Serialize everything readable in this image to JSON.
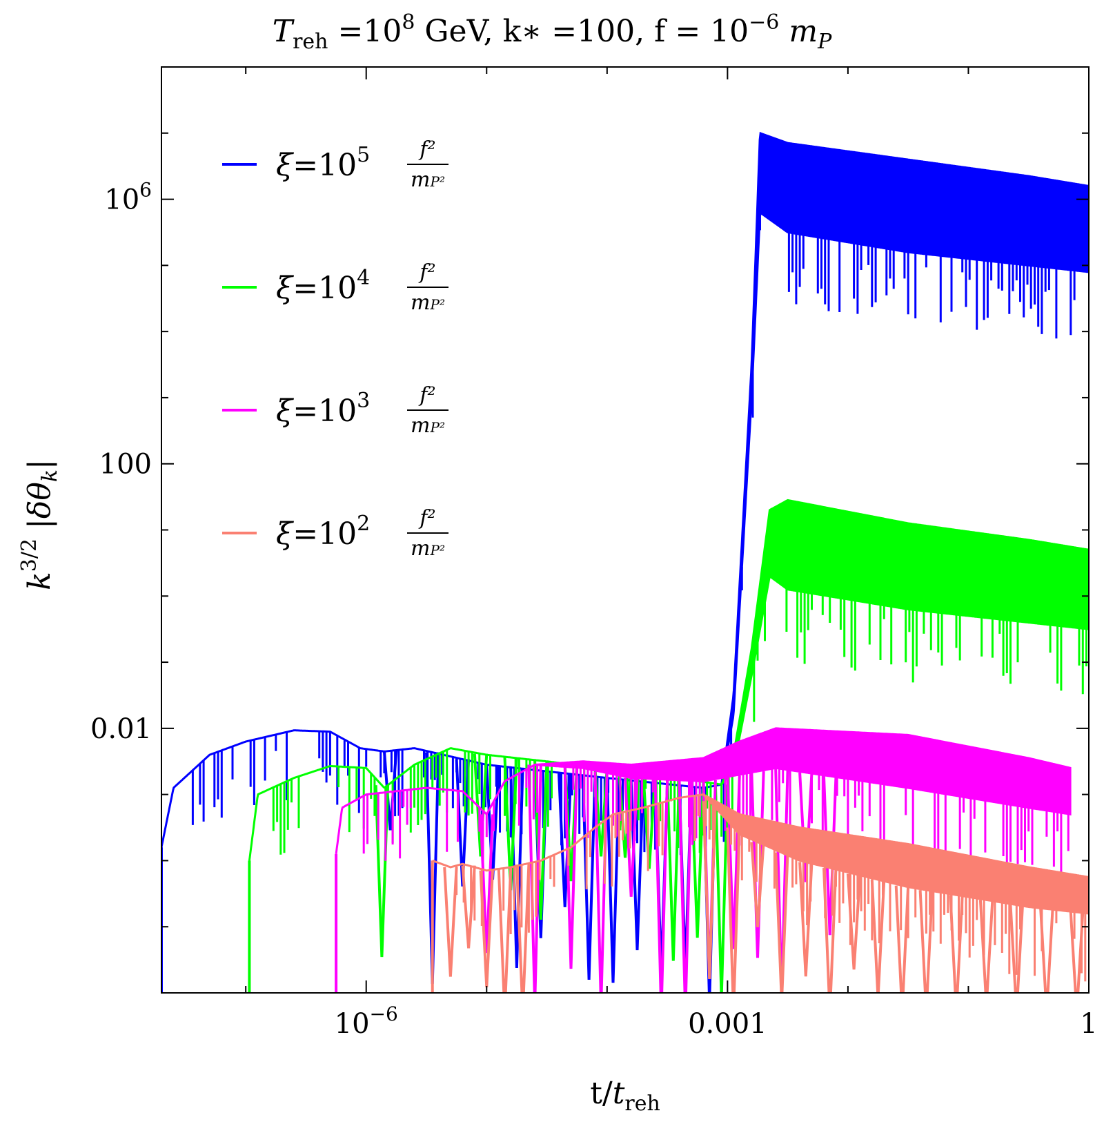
{
  "chart_data": {
    "type": "line",
    "title": "T_reh =10^8 GeV, k* =100, f = 10^-6 m_P",
    "title_parts": {
      "t_sym": "T",
      "t_sub": "reh",
      "eq1": " =10",
      "exp1": "8",
      "rest": " GeV, k",
      "star": "∗",
      "k_val": " =100, f = 10",
      "exp2": "−6",
      "mp": " m",
      "mp_sub": "P"
    },
    "xlabel": "t/t_reh",
    "xlabel_parts": {
      "a": "t/",
      "b": "t",
      "sub": "reh"
    },
    "ylabel": "k^{3/2} |δθ_k|",
    "ylabel_parts": {
      "k": "k",
      "exp": "3/2",
      "mid": " |δθ",
      "sub": "k",
      "end": "|"
    },
    "x_scale": "log",
    "y_scale": "log",
    "x_range_log10": [
      -7.7,
      0
    ],
    "y_range_log10": [
      -6,
      8
    ],
    "x_ticks": [
      {
        "log": -6,
        "label": "10",
        "exp": "−6"
      },
      {
        "log": -3,
        "label": "0.001",
        "exp": ""
      },
      {
        "log": 0,
        "label": "1",
        "exp": ""
      }
    ],
    "y_ticks": [
      {
        "log": 6,
        "label": "10",
        "exp": "6"
      },
      {
        "log": 2,
        "label": "100",
        "exp": ""
      },
      {
        "log": -2,
        "label": "0.01",
        "exp": ""
      }
    ],
    "legend_position": "top-left",
    "series": [
      {
        "name": "ξ=10^5 f²/m_P²",
        "xi_exp": "5",
        "color": "#0000ff",
        "envelope": [
          [
            -7.7,
            -3.8
          ],
          [
            -7.6,
            -2.9
          ],
          [
            -7.3,
            -2.4
          ],
          [
            -7,
            -2.2
          ],
          [
            -6.6,
            -2.03
          ],
          [
            -6.3,
            -2.05
          ],
          [
            -6.05,
            -2.3
          ],
          [
            -5.85,
            -2.35
          ],
          [
            -5.6,
            -2.3
          ],
          [
            -5,
            -2.55
          ],
          [
            -4,
            -2.75
          ],
          [
            -3.2,
            -2.9
          ],
          [
            -3.05,
            -2.85
          ],
          [
            -2.95,
            -1.5
          ],
          [
            -2.8,
            3.5
          ],
          [
            -2.73,
            7.0
          ],
          [
            -2.5,
            6.85
          ],
          [
            -1.5,
            6.6
          ],
          [
            -0.5,
            6.35
          ],
          [
            0,
            6.2
          ]
        ],
        "floor": [
          [
            -7.7,
            -3.8
          ],
          [
            -7.6,
            -2.9
          ],
          [
            -7.3,
            -2.4
          ],
          [
            -7,
            -2.2
          ],
          [
            -6.6,
            -2.03
          ],
          [
            -6.3,
            -2.05
          ],
          [
            -6.05,
            -2.3
          ],
          [
            -5.85,
            -2.35
          ],
          [
            -5.6,
            -2.3
          ],
          [
            -5,
            -2.55
          ],
          [
            -4,
            -2.75
          ],
          [
            -3.2,
            -2.9
          ],
          [
            -3.05,
            -2.85
          ],
          [
            -2.95,
            -1.8
          ],
          [
            -2.8,
            3.0
          ],
          [
            -2.73,
            5.8
          ],
          [
            -2.5,
            5.5
          ],
          [
            -1.5,
            5.2
          ],
          [
            -0.5,
            5.0
          ],
          [
            0,
            4.9
          ]
        ],
        "dips": [
          -5.8,
          -5.45,
          -5.2,
          -4.95,
          -4.75,
          -4.55,
          -4.35,
          -4.15,
          -3.95,
          -3.75,
          -3.55,
          -3.35,
          -3.15
        ]
      },
      {
        "name": "ξ=10^4 f²/m_P²",
        "xi_exp": "4",
        "color": "#00ff00",
        "envelope": [
          [
            -6.97,
            -4.0
          ],
          [
            -6.9,
            -3.0
          ],
          [
            -6.6,
            -2.75
          ],
          [
            -6.3,
            -2.57
          ],
          [
            -6.0,
            -2.6
          ],
          [
            -5.85,
            -2.9
          ],
          [
            -5.6,
            -2.55
          ],
          [
            -5.3,
            -2.3
          ],
          [
            -5.0,
            -2.4
          ],
          [
            -4.5,
            -2.5
          ],
          [
            -3.6,
            -2.7
          ],
          [
            -3.05,
            -2.85
          ],
          [
            -2.95,
            -2.4
          ],
          [
            -2.8,
            -0.8
          ],
          [
            -2.65,
            1.3
          ],
          [
            -2.5,
            1.45
          ],
          [
            -1.5,
            1.1
          ],
          [
            -0.5,
            0.85
          ],
          [
            0,
            0.7
          ]
        ],
        "floor": [
          [
            -6.97,
            -4.0
          ],
          [
            -6.9,
            -3.0
          ],
          [
            -6.6,
            -2.75
          ],
          [
            -6.3,
            -2.57
          ],
          [
            -6.0,
            -2.6
          ],
          [
            -5.85,
            -2.9
          ],
          [
            -5.6,
            -2.55
          ],
          [
            -5.3,
            -2.3
          ],
          [
            -5.0,
            -2.4
          ],
          [
            -4.5,
            -2.5
          ],
          [
            -3.6,
            -2.7
          ],
          [
            -3.05,
            -2.85
          ],
          [
            -2.95,
            -2.6
          ],
          [
            -2.8,
            -1.2
          ],
          [
            -2.65,
            0.3
          ],
          [
            -2.5,
            0.1
          ],
          [
            -1.5,
            -0.2
          ],
          [
            -0.5,
            -0.4
          ],
          [
            0,
            -0.5
          ]
        ],
        "dips": [
          -5.87,
          -5.05,
          -4.8,
          -4.55,
          -4.3,
          -4.05,
          -3.85,
          -3.65,
          -3.45,
          -3.25,
          -3.05
        ]
      },
      {
        "name": "ξ=10^3 f²/m_P²",
        "xi_exp": "3",
        "color": "#ff00ff",
        "envelope": [
          [
            -6.25,
            -3.9
          ],
          [
            -6.2,
            -3.2
          ],
          [
            -6.0,
            -3.0
          ],
          [
            -5.8,
            -2.96
          ],
          [
            -5.5,
            -2.9
          ],
          [
            -5.2,
            -2.95
          ],
          [
            -5.0,
            -3.3
          ],
          [
            -4.85,
            -2.8
          ],
          [
            -4.6,
            -2.55
          ],
          [
            -4.2,
            -2.5
          ],
          [
            -3.8,
            -2.55
          ],
          [
            -3.2,
            -2.45
          ],
          [
            -2.9,
            -2.2
          ],
          [
            -2.6,
            -2.0
          ],
          [
            -1.5,
            -2.1
          ],
          [
            -0.5,
            -2.45
          ],
          [
            -0.15,
            -2.6
          ]
        ],
        "floor": [
          [
            -6.25,
            -3.9
          ],
          [
            -6.2,
            -3.2
          ],
          [
            -6.0,
            -3.0
          ],
          [
            -5.8,
            -2.96
          ],
          [
            -5.5,
            -2.9
          ],
          [
            -5.2,
            -2.95
          ],
          [
            -5.0,
            -3.3
          ],
          [
            -4.85,
            -2.8
          ],
          [
            -4.6,
            -2.55
          ],
          [
            -4.2,
            -2.6
          ],
          [
            -3.8,
            -2.75
          ],
          [
            -3.2,
            -2.8
          ],
          [
            -2.9,
            -2.7
          ],
          [
            -2.6,
            -2.6
          ],
          [
            -1.5,
            -2.9
          ],
          [
            -0.5,
            -3.2
          ],
          [
            -0.15,
            -3.3
          ]
        ],
        "dips": [
          -5.0,
          -4.6,
          -4.3,
          -4.05,
          -3.8,
          -3.55,
          -3.35,
          -3.15,
          -2.95,
          -2.75,
          -2.55,
          -2.35,
          -2.15
        ]
      },
      {
        "name": "ξ=10^2 f²/m_P²",
        "xi_exp": "2",
        "color": "#fa8072",
        "envelope": [
          [
            -5.45,
            -4.0
          ],
          [
            -5.3,
            -4.1
          ],
          [
            -5.2,
            -4.05
          ],
          [
            -5.0,
            -4.15
          ],
          [
            -4.8,
            -4.1
          ],
          [
            -4.55,
            -4.0
          ],
          [
            -4.3,
            -3.8
          ],
          [
            -4.1,
            -3.5
          ],
          [
            -3.95,
            -3.3
          ],
          [
            -3.7,
            -3.2
          ],
          [
            -3.4,
            -3.05
          ],
          [
            -3.2,
            -3.0
          ],
          [
            -2.9,
            -3.3
          ],
          [
            -2.4,
            -3.5
          ],
          [
            -1.5,
            -3.75
          ],
          [
            -0.5,
            -4.1
          ],
          [
            0,
            -4.25
          ]
        ],
        "floor": [
          [
            -5.45,
            -4.0
          ],
          [
            -5.3,
            -4.1
          ],
          [
            -5.2,
            -4.05
          ],
          [
            -5.0,
            -4.15
          ],
          [
            -4.8,
            -4.1
          ],
          [
            -4.55,
            -4.0
          ],
          [
            -4.3,
            -3.8
          ],
          [
            -4.1,
            -3.5
          ],
          [
            -3.95,
            -3.3
          ],
          [
            -3.7,
            -3.2
          ],
          [
            -3.4,
            -3.05
          ],
          [
            -3.2,
            -3.0
          ],
          [
            -2.9,
            -3.6
          ],
          [
            -2.4,
            -4.0
          ],
          [
            -1.5,
            -4.4
          ],
          [
            -0.5,
            -4.7
          ],
          [
            0,
            -4.8
          ]
        ],
        "dips": [
          -5.3,
          -5.15,
          -5.0,
          -4.85,
          -4.7,
          -3.15,
          -2.95,
          -2.75,
          -2.55,
          -2.35,
          -2.15,
          -1.95,
          -1.75,
          -1.55,
          -1.35,
          -1.1,
          -0.85,
          -0.6,
          -0.35,
          -0.1
        ]
      }
    ]
  }
}
